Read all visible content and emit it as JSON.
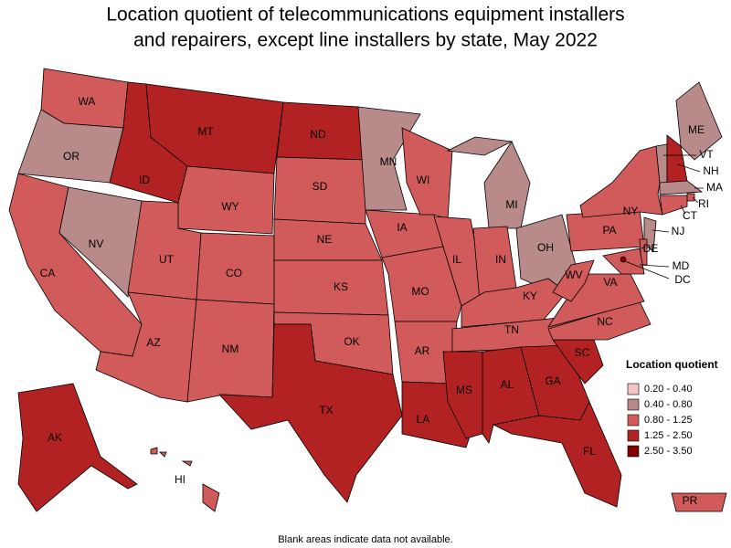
{
  "title": [
    "Location quotient of telecommunications equipment installers",
    "and repairers, except line installers by state, May 2022"
  ],
  "note": "Blank areas indicate data not available.",
  "legend": {
    "title": "Location quotient",
    "items": [
      {
        "label": "0.20 - 0.40",
        "color": "#f5c4c4"
      },
      {
        "label": "0.40 - 0.80",
        "color": "#b88a8a"
      },
      {
        "label": "0.80 - 1.25",
        "color": "#d15b5b"
      },
      {
        "label": "1.25 - 2.50",
        "color": "#b22222"
      },
      {
        "label": "2.50 - 3.50",
        "color": "#800000"
      }
    ]
  },
  "states": [
    {
      "label": "WA",
      "bin": 2
    },
    {
      "label": "OR",
      "bin": 1
    },
    {
      "label": "CA",
      "bin": 2
    },
    {
      "label": "NV",
      "bin": 1
    },
    {
      "label": "ID",
      "bin": 3
    },
    {
      "label": "MT",
      "bin": 3
    },
    {
      "label": "WY",
      "bin": 2
    },
    {
      "label": "UT",
      "bin": 2
    },
    {
      "label": "CO",
      "bin": 2
    },
    {
      "label": "AZ",
      "bin": 2
    },
    {
      "label": "NM",
      "bin": 2
    },
    {
      "label": "ND",
      "bin": 3
    },
    {
      "label": "SD",
      "bin": 2
    },
    {
      "label": "NE",
      "bin": 2
    },
    {
      "label": "KS",
      "bin": 2
    },
    {
      "label": "OK",
      "bin": 2
    },
    {
      "label": "TX",
      "bin": 3
    },
    {
      "label": "MN",
      "bin": 1
    },
    {
      "label": "IA",
      "bin": 2
    },
    {
      "label": "MO",
      "bin": 2
    },
    {
      "label": "AR",
      "bin": 2
    },
    {
      "label": "LA",
      "bin": 3
    },
    {
      "label": "WI",
      "bin": 2
    },
    {
      "label": "IL",
      "bin": 2
    },
    {
      "label": "MI",
      "bin": 1
    },
    {
      "label": "IN",
      "bin": 2
    },
    {
      "label": "OH",
      "bin": 1
    },
    {
      "label": "KY",
      "bin": 2
    },
    {
      "label": "TN",
      "bin": 2
    },
    {
      "label": "MS",
      "bin": 3
    },
    {
      "label": "AL",
      "bin": 3
    },
    {
      "label": "GA",
      "bin": 3
    },
    {
      "label": "FL",
      "bin": 3
    },
    {
      "label": "SC",
      "bin": 3
    },
    {
      "label": "NC",
      "bin": 2
    },
    {
      "label": "VA",
      "bin": 2
    },
    {
      "label": "WV",
      "bin": 2
    },
    {
      "label": "PA",
      "bin": 2
    },
    {
      "label": "NY",
      "bin": 2
    },
    {
      "label": "ME",
      "bin": 1
    },
    {
      "label": "VT",
      "bin": 1
    },
    {
      "label": "NH",
      "bin": 3
    },
    {
      "label": "MA",
      "bin": 1
    },
    {
      "label": "RI",
      "bin": 2
    },
    {
      "label": "CT",
      "bin": 2
    },
    {
      "label": "NJ",
      "bin": 1
    },
    {
      "label": "DE",
      "bin": 2
    },
    {
      "label": "MD",
      "bin": 2
    },
    {
      "label": "DC",
      "bin": 4
    },
    {
      "label": "AK",
      "bin": 3
    },
    {
      "label": "HI",
      "bin": 2
    },
    {
      "label": "PR",
      "bin": 2
    }
  ]
}
